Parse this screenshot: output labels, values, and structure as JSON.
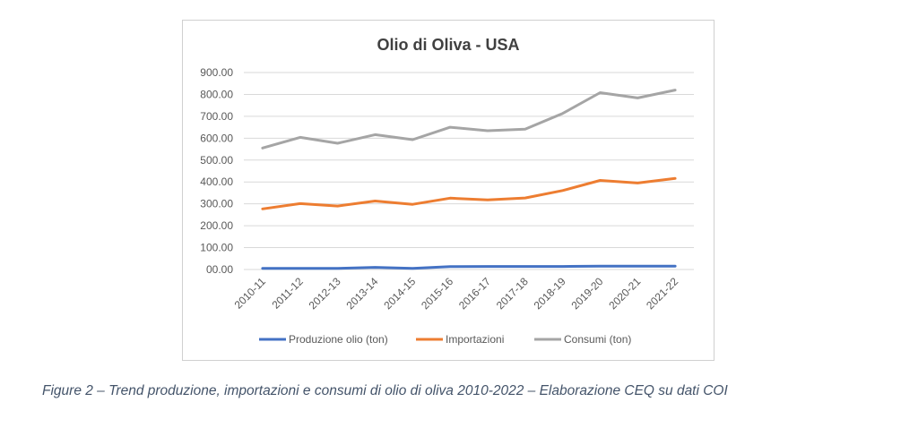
{
  "chart_data": {
    "type": "line",
    "title": "Olio di Oliva - USA",
    "xlabel": "",
    "ylabel": "",
    "categories": [
      "2010-11",
      "2011-12",
      "2012-13",
      "2013-14",
      "2014-15",
      "2015-16",
      "2016-17",
      "2017-18",
      "2018-19",
      "2019-20",
      "2020-21",
      "2021-22"
    ],
    "ylim": [
      0,
      900
    ],
    "yticks": [
      "00.00",
      "100.00",
      "200.00",
      "300.00",
      "400.00",
      "500.00",
      "600.00",
      "700.00",
      "800.00",
      "900.00"
    ],
    "grid": true,
    "legend_position": "bottom",
    "series": [
      {
        "name": "Produzione olio (ton)",
        "color": "#4472c4",
        "values": [
          5,
          5,
          5,
          10,
          5,
          13,
          14,
          14,
          14,
          15,
          15,
          15
        ]
      },
      {
        "name": "Importazioni",
        "color": "#ed7d31",
        "values": [
          277,
          301,
          290,
          313,
          298,
          326,
          318,
          327,
          361,
          407,
          395,
          416
        ]
      },
      {
        "name": "Consumi (ton)",
        "color": "#a5a5a5",
        "values": [
          555,
          604,
          577,
          616,
          593,
          650,
          634,
          641,
          713,
          808,
          784,
          820
        ]
      }
    ]
  },
  "caption": "Figure 2 – Trend produzione, importazioni e consumi di olio di oliva 2010-2022 – Elaborazione CEQ su dati COI"
}
